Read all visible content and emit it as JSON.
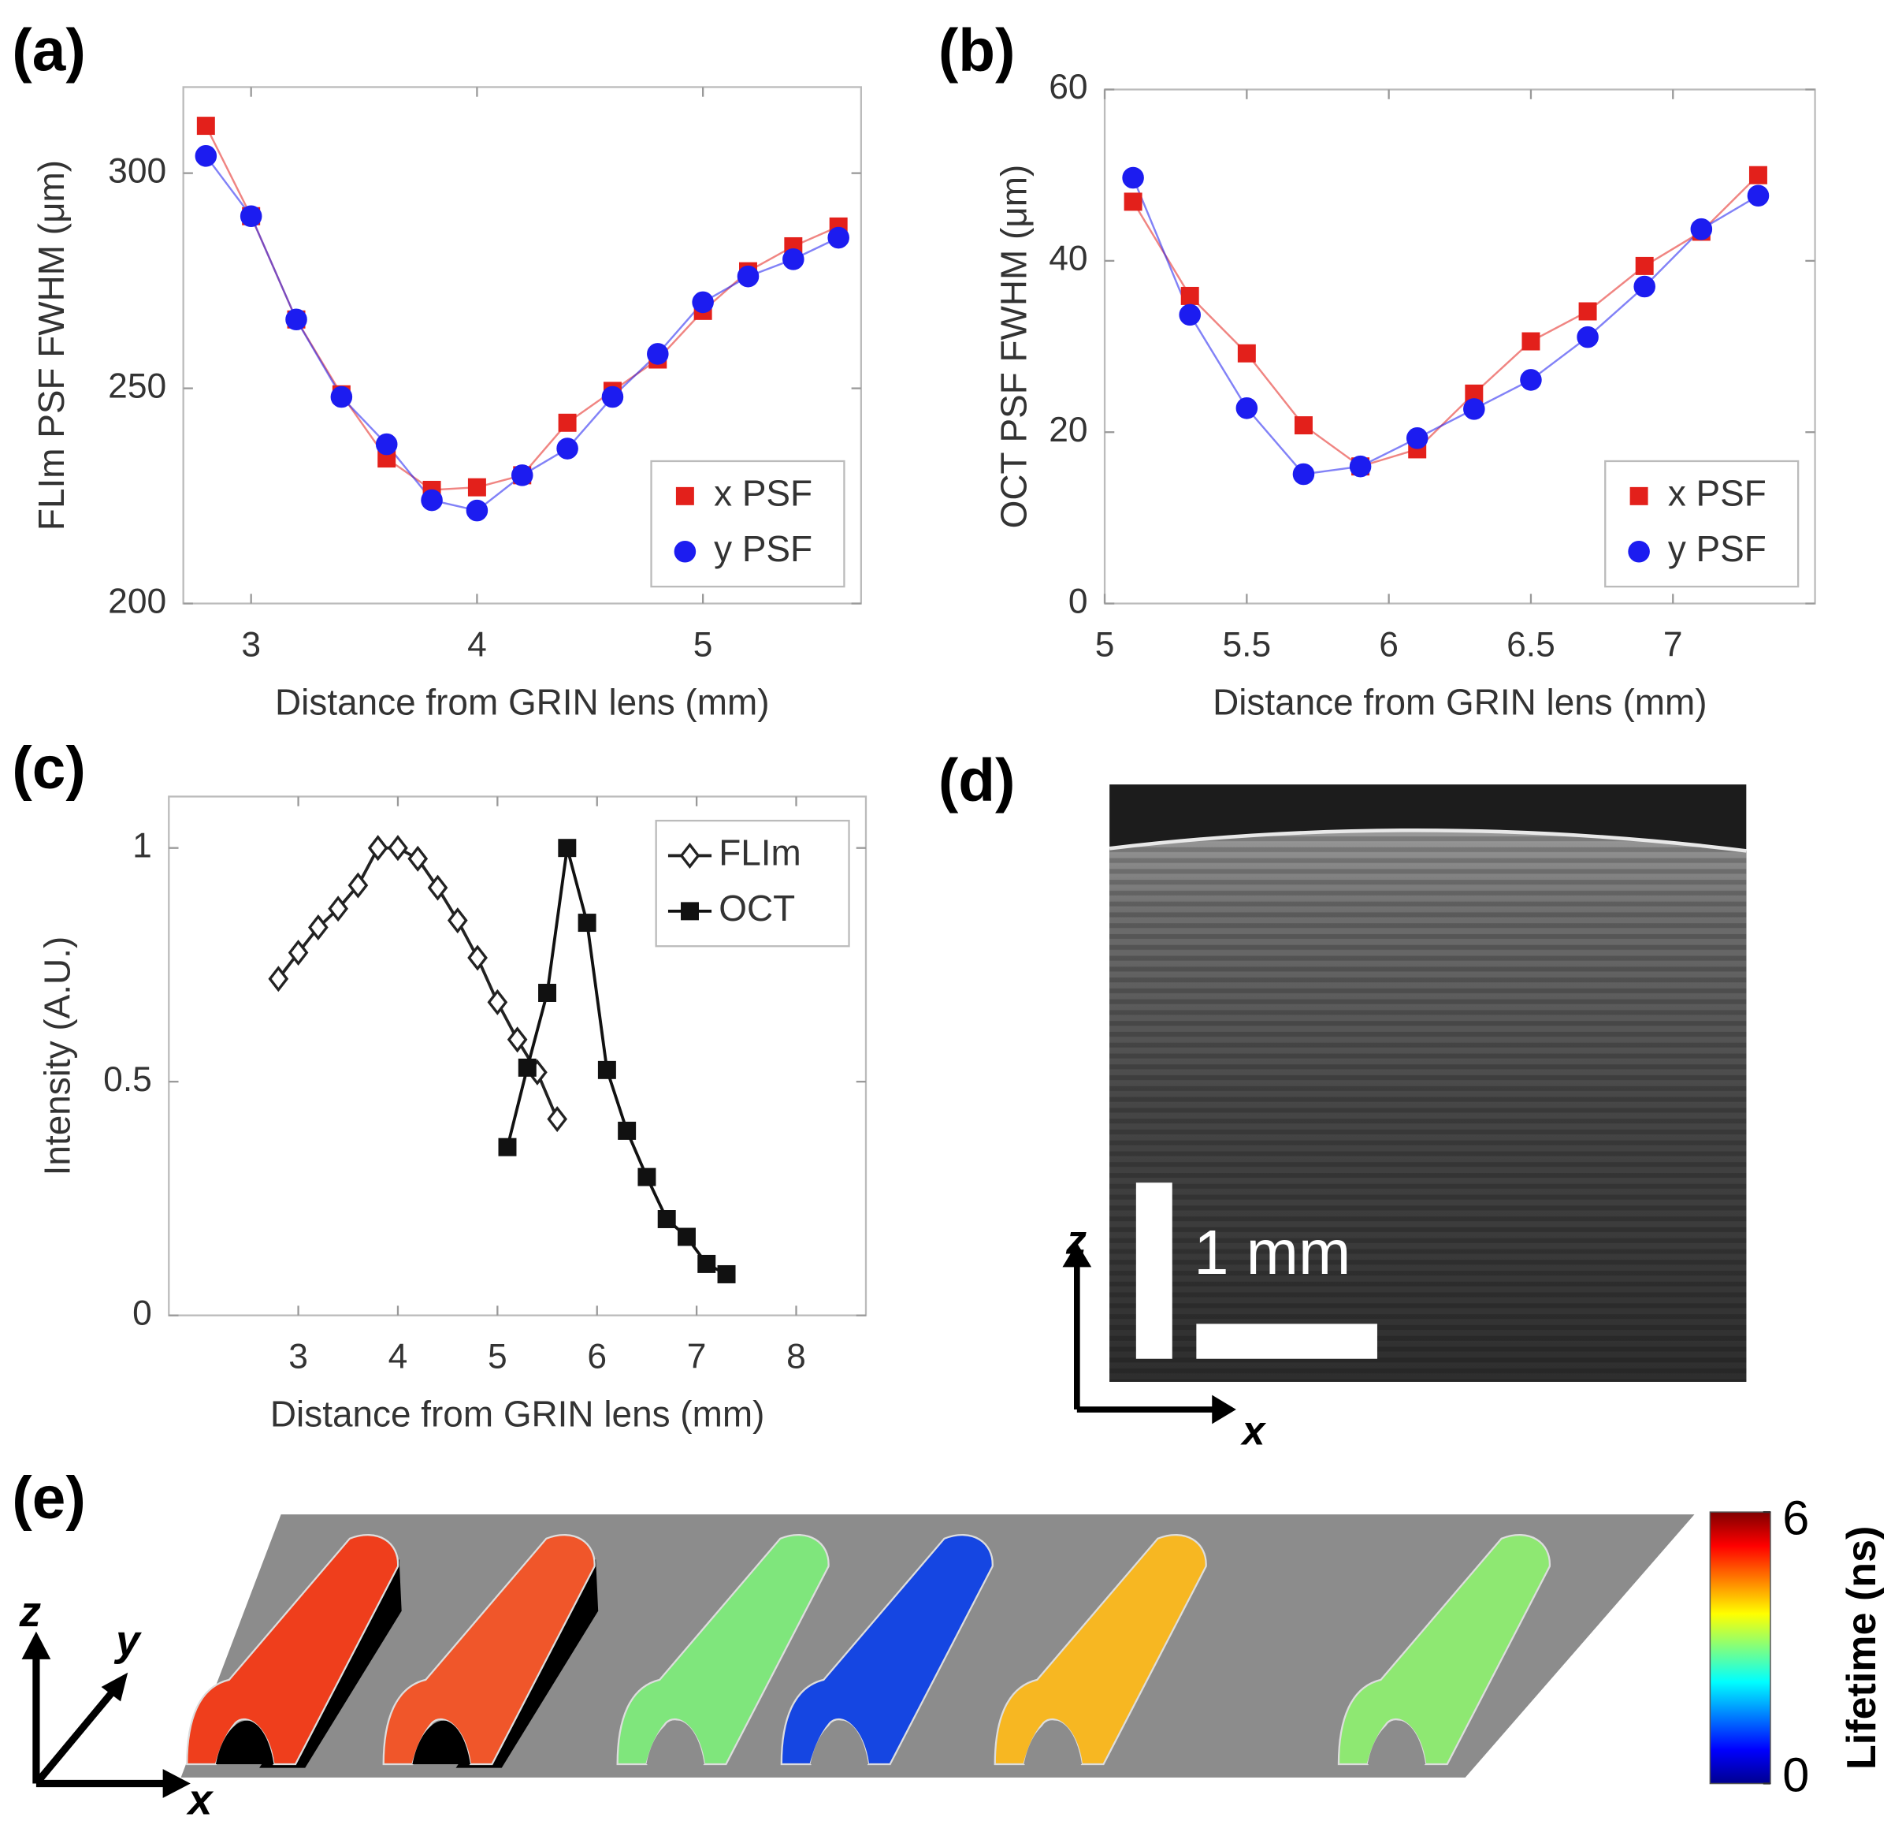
{
  "chart_data": [
    {
      "type": "line",
      "panel_label": "(a)",
      "xlabel": "Distance from GRIN lens (mm)",
      "ylabel": "FLIm PSF FWHM (μm)",
      "xlim": [
        2.7,
        5.7
      ],
      "xticks": [
        3,
        4,
        5
      ],
      "ylim": [
        200,
        320
      ],
      "yticks": [
        200,
        250,
        300
      ],
      "grid": false,
      "legend": "lower right",
      "series": [
        {
          "name": "x PSF",
          "color": "#e3201b",
          "marker": "square",
          "x": [
            2.8,
            3.0,
            3.2,
            3.4,
            3.6,
            3.8,
            4.0,
            4.2,
            4.4,
            4.6,
            4.8,
            5.0,
            5.2,
            5.4,
            5.6
          ],
          "values": [
            311,
            290,
            266,
            248.6,
            233.7,
            226.4,
            227,
            229.8,
            242,
            249.4,
            256.7,
            268,
            277.2,
            283,
            287.6
          ]
        },
        {
          "name": "y PSF",
          "color": "#1c1cf0",
          "marker": "circle",
          "x": [
            2.8,
            3.0,
            3.2,
            3.4,
            3.6,
            3.8,
            4.0,
            4.2,
            4.4,
            4.6,
            4.8,
            5.0,
            5.2,
            5.4,
            5.6
          ],
          "values": [
            304,
            290,
            266,
            248,
            237,
            224,
            221.6,
            229.8,
            236,
            248,
            258,
            270,
            276,
            280,
            285
          ]
        }
      ]
    },
    {
      "type": "line",
      "panel_label": "(b)",
      "xlabel": "Distance from GRIN lens (mm)",
      "ylabel": "OCT PSF FWHM (μm)",
      "xlim": [
        5,
        7.5
      ],
      "xticks": [
        5,
        5.5,
        6,
        6.5,
        7
      ],
      "ylim": [
        0,
        60
      ],
      "yticks": [
        0,
        20,
        40,
        60
      ],
      "grid": false,
      "legend": "lower right",
      "series": [
        {
          "name": "x PSF",
          "color": "#e3201b",
          "marker": "square",
          "x": [
            5.1,
            5.3,
            5.5,
            5.7,
            5.9,
            6.1,
            6.3,
            6.5,
            6.7,
            6.9,
            7.1,
            7.3
          ],
          "values": [
            46.9,
            35.9,
            29.2,
            20.8,
            16,
            18,
            24.5,
            30.6,
            34.1,
            39.4,
            43.4,
            50
          ]
        },
        {
          "name": "y PSF",
          "color": "#1c1cf0",
          "marker": "circle",
          "x": [
            5.1,
            5.3,
            5.5,
            5.7,
            5.9,
            6.1,
            6.3,
            6.5,
            6.7,
            6.9,
            7.1,
            7.3
          ],
          "values": [
            49.7,
            33.7,
            22.8,
            15.1,
            16,
            19.3,
            22.7,
            26.1,
            31.1,
            37,
            43.7,
            47.6
          ]
        }
      ]
    },
    {
      "type": "line",
      "panel_label": "(c)",
      "xlabel": "Distance from GRIN lens (mm)",
      "ylabel": "Intensity (A.U.)",
      "xlim": [
        1.7,
        8.7
      ],
      "xticks": [
        3,
        4,
        5,
        6,
        7,
        8
      ],
      "ylim": [
        0,
        1.11
      ],
      "yticks": [
        0,
        0.5,
        1
      ],
      "grid": false,
      "legend": "upper right",
      "series": [
        {
          "name": "FLIm",
          "color": "#222222",
          "marker": "diamond",
          "marker_fill": "#ffffff",
          "x": [
            2.8,
            3.0,
            3.2,
            3.4,
            3.6,
            3.8,
            4.0,
            4.2,
            4.4,
            4.6,
            4.8,
            5.0,
            5.2,
            5.4,
            5.6
          ],
          "values": [
            0.72,
            0.776,
            0.83,
            0.87,
            0.92,
            1.0,
            1.0,
            0.977,
            0.915,
            0.845,
            0.765,
            0.67,
            0.59,
            0.52,
            0.42
          ]
        },
        {
          "name": "OCT",
          "color": "#111111",
          "marker": "square",
          "x": [
            5.1,
            5.3,
            5.5,
            5.7,
            5.9,
            6.1,
            6.3,
            6.5,
            6.7,
            6.9,
            7.1,
            7.3
          ],
          "values": [
            0.36,
            0.53,
            0.69,
            1.0,
            0.84,
            0.525,
            0.395,
            0.296,
            0.206,
            0.168,
            0.11,
            0.088
          ]
        }
      ]
    },
    {
      "type": "colorbar",
      "panel_label": "(e)",
      "title": "Lifetime (ns)",
      "ylim": [
        0,
        6
      ],
      "yticks": [
        0,
        6
      ]
    }
  ],
  "image_d": {
    "panel_label": "(d)",
    "scale_bar": "1 mm",
    "axis_z": "z",
    "axis_x": "x"
  },
  "scene_e": {
    "axis_z": "z",
    "axis_y": "y",
    "axis_x": "x"
  }
}
